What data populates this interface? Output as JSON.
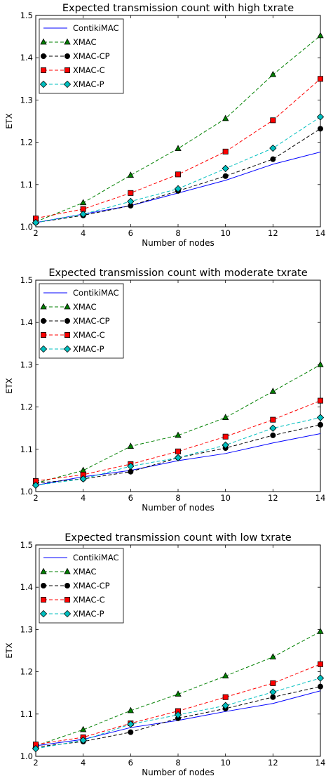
{
  "chart_data": [
    {
      "type": "line",
      "title": "Expected transmission count with high txrate",
      "xlabel": "Number of nodes",
      "ylabel": "ETX",
      "xlim": [
        2,
        14
      ],
      "ylim": [
        1.0,
        1.5
      ],
      "xticks": [
        2,
        4,
        6,
        8,
        10,
        12,
        14
      ],
      "yticks": [
        "1.0",
        "1.1",
        "1.2",
        "1.3",
        "1.4",
        "1.5"
      ],
      "grid": false,
      "legend_position": "top-left",
      "x": [
        2,
        4,
        6,
        8,
        10,
        12,
        14
      ],
      "series": [
        {
          "name": "ContikiMAC",
          "color": "#0000ff",
          "style": "solid",
          "marker": "none",
          "values": [
            1.01,
            1.03,
            1.05,
            1.08,
            1.11,
            1.148,
            1.177
          ]
        },
        {
          "name": "XMAC",
          "color": "#008000",
          "style": "dashed",
          "marker": "triangle",
          "values": [
            1.012,
            1.057,
            1.122,
            1.185,
            1.256,
            1.36,
            1.452
          ]
        },
        {
          "name": "XMAC-CP",
          "color": "#000000",
          "style": "dashed",
          "marker": "circle",
          "values": [
            1.01,
            1.027,
            1.05,
            1.085,
            1.12,
            1.16,
            1.232
          ]
        },
        {
          "name": "XMAC-C",
          "color": "#ff0000",
          "style": "dashed",
          "marker": "square",
          "values": [
            1.02,
            1.042,
            1.08,
            1.124,
            1.178,
            1.252,
            1.35
          ]
        },
        {
          "name": "XMAC-P",
          "color": "#00bfbf",
          "style": "dashed",
          "marker": "diamond",
          "values": [
            1.01,
            1.03,
            1.06,
            1.09,
            1.138,
            1.186,
            1.26
          ]
        }
      ]
    },
    {
      "type": "line",
      "title": "Expected transmission count with moderate txrate",
      "xlabel": "Number of nodes",
      "ylabel": "ETX",
      "xlim": [
        2,
        14
      ],
      "ylim": [
        1.0,
        1.5
      ],
      "xticks": [
        2,
        4,
        6,
        8,
        10,
        12,
        14
      ],
      "yticks": [
        "1.0",
        "1.1",
        "1.2",
        "1.3",
        "1.4",
        "1.5"
      ],
      "grid": false,
      "legend_position": "top-left",
      "x": [
        2,
        4,
        6,
        8,
        10,
        12,
        14
      ],
      "series": [
        {
          "name": "ContikiMAC",
          "color": "#0000ff",
          "style": "solid",
          "marker": "none",
          "values": [
            1.015,
            1.035,
            1.05,
            1.073,
            1.09,
            1.115,
            1.137
          ]
        },
        {
          "name": "XMAC",
          "color": "#008000",
          "style": "dashed",
          "marker": "triangle",
          "values": [
            1.02,
            1.05,
            1.107,
            1.133,
            1.175,
            1.237,
            1.3
          ]
        },
        {
          "name": "XMAC-CP",
          "color": "#000000",
          "style": "dashed",
          "marker": "circle",
          "values": [
            1.02,
            1.03,
            1.047,
            1.08,
            1.103,
            1.133,
            1.158
          ]
        },
        {
          "name": "XMAC-C",
          "color": "#ff0000",
          "style": "dashed",
          "marker": "square",
          "values": [
            1.025,
            1.04,
            1.065,
            1.095,
            1.13,
            1.17,
            1.215
          ]
        },
        {
          "name": "XMAC-P",
          "color": "#00bfbf",
          "style": "dashed",
          "marker": "diamond",
          "values": [
            1.015,
            1.03,
            1.06,
            1.08,
            1.11,
            1.15,
            1.175
          ]
        }
      ]
    },
    {
      "type": "line",
      "title": "Expected transmission count with low txrate",
      "xlabel": "Number of nodes",
      "ylabel": "ETX",
      "xlim": [
        2,
        14
      ],
      "ylim": [
        1.0,
        1.5
      ],
      "xticks": [
        2,
        4,
        6,
        8,
        10,
        12,
        14
      ],
      "yticks": [
        "1.0",
        "1.1",
        "1.2",
        "1.3",
        "1.4",
        "1.5"
      ],
      "grid": false,
      "legend_position": "top-left",
      "x": [
        2,
        4,
        6,
        8,
        10,
        12,
        14
      ],
      "series": [
        {
          "name": "ContikiMAC",
          "color": "#0000ff",
          "style": "solid",
          "marker": "none",
          "values": [
            1.025,
            1.04,
            1.068,
            1.085,
            1.106,
            1.125,
            1.155
          ]
        },
        {
          "name": "XMAC",
          "color": "#008000",
          "style": "dashed",
          "marker": "triangle",
          "values": [
            1.025,
            1.063,
            1.108,
            1.147,
            1.19,
            1.235,
            1.295
          ]
        },
        {
          "name": "XMAC-CP",
          "color": "#000000",
          "style": "dashed",
          "marker": "circle",
          "values": [
            1.022,
            1.035,
            1.057,
            1.09,
            1.113,
            1.14,
            1.165
          ]
        },
        {
          "name": "XMAC-C",
          "color": "#ff0000",
          "style": "dashed",
          "marker": "square",
          "values": [
            1.028,
            1.045,
            1.078,
            1.107,
            1.14,
            1.173,
            1.218
          ]
        },
        {
          "name": "XMAC-P",
          "color": "#00bfbf",
          "style": "dashed",
          "marker": "diamond",
          "values": [
            1.018,
            1.038,
            1.076,
            1.098,
            1.12,
            1.152,
            1.185
          ]
        }
      ]
    }
  ]
}
